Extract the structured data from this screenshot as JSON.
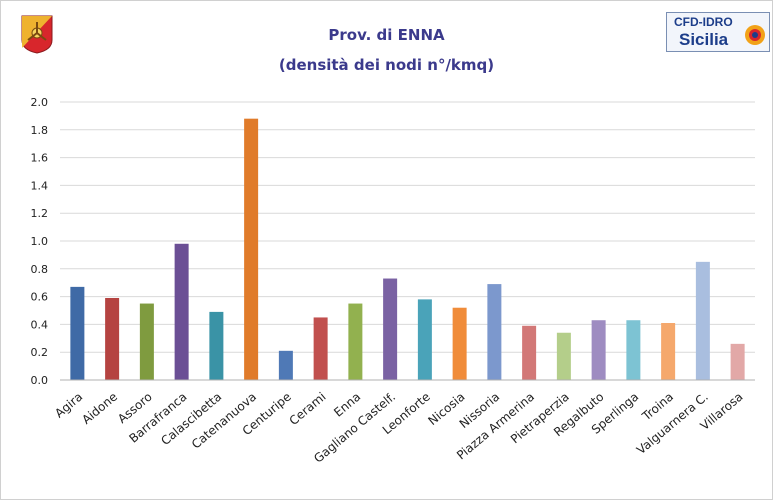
{
  "title": "Prov. di ENNA",
  "subtitle": "(densità dei nodi n°/kmq)",
  "logo_right": {
    "line1": "CFD-IDRO",
    "line2": "Sicilia"
  },
  "icons": {
    "left_logo": "sicily-trinacria-emblem-icon",
    "right_logo": "cfd-idro-sun-logo-icon"
  },
  "chart_data": {
    "type": "bar",
    "title": "Prov. di ENNA",
    "subtitle": "(densità dei nodi n°/kmq)",
    "xlabel": "",
    "ylabel": "",
    "ylim": [
      0,
      2.0
    ],
    "yticks": [
      "0.0",
      "0.2",
      "0.4",
      "0.6",
      "0.8",
      "1.0",
      "1.2",
      "1.4",
      "1.6",
      "1.8",
      "2.0"
    ],
    "grid": true,
    "legend": "none",
    "categories": [
      "Agira",
      "Aidone",
      "Assoro",
      "Barrafranca",
      "Calascibetta",
      "Catenanuova",
      "Centuripe",
      "Cerami",
      "Enna",
      "Gagliano Castelf.",
      "Leonforte",
      "Nicosia",
      "Nissoria",
      "Piazza Armerina",
      "Pietraperzia",
      "Regalbuto",
      "Sperlinga",
      "Troina",
      "Valguarnera C.",
      "Villarosa"
    ],
    "values": [
      0.67,
      0.59,
      0.55,
      0.98,
      0.49,
      1.88,
      0.21,
      0.45,
      0.55,
      0.73,
      0.58,
      0.52,
      0.69,
      0.39,
      0.34,
      0.43,
      0.43,
      0.41,
      0.85,
      0.26
    ],
    "colors": [
      "#3f6aa6",
      "#b54341",
      "#7f9b3f",
      "#6b4f95",
      "#3a93a6",
      "#e07b2a",
      "#4f79b6",
      "#c1504e",
      "#92b14f",
      "#7a62a3",
      "#4aa3b9",
      "#f08c3a",
      "#7c98cd",
      "#d27877",
      "#b4ce8a",
      "#9e8cc1",
      "#7dc3d3",
      "#f5a86c",
      "#a9bedf",
      "#e2a8a7"
    ]
  }
}
